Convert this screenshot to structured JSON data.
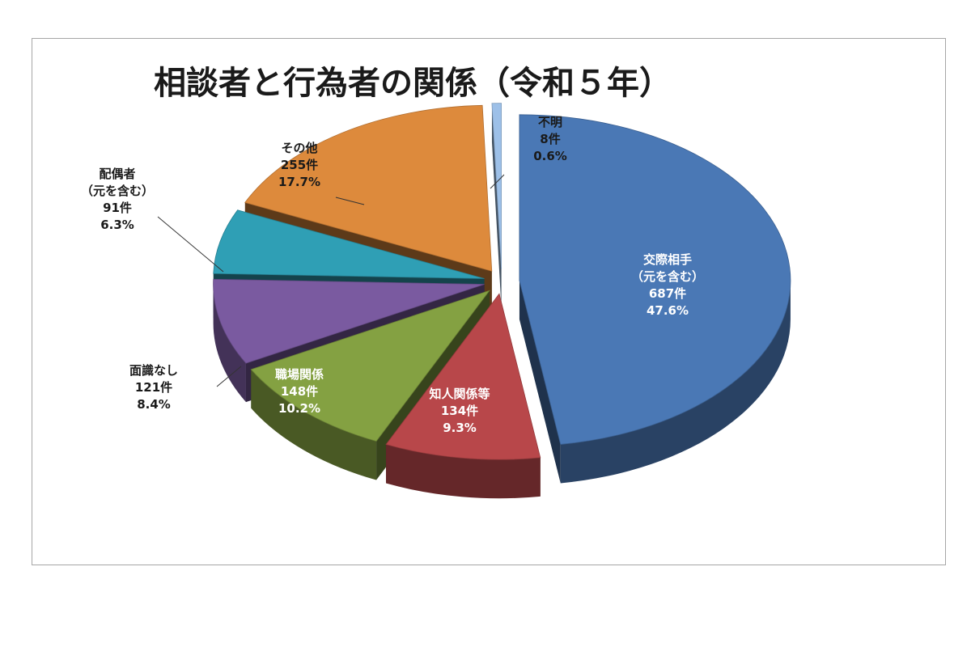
{
  "chart_data": {
    "type": "pie",
    "style": "3d-exploded",
    "title": "相談者と行為者の関係（令和５年）",
    "slices": [
      {
        "name": "交際相手（元を含む）",
        "label_lines": [
          "交際相手",
          "（元を含む）"
        ],
        "count": 687,
        "count_label": "687件",
        "percent": 47.6,
        "percent_label": "47.6%",
        "color": "#4a78b5",
        "label_color": "#ffffff"
      },
      {
        "name": "知人関係等",
        "label_lines": [
          "知人関係等"
        ],
        "count": 134,
        "count_label": "134件",
        "percent": 9.3,
        "percent_label": "9.3%",
        "color": "#b8474a",
        "label_color": "#ffffff"
      },
      {
        "name": "職場関係",
        "label_lines": [
          "職場関係"
        ],
        "count": 148,
        "count_label": "148件",
        "percent": 10.2,
        "percent_label": "10.2%",
        "color": "#84a142",
        "label_color": "#ffffff"
      },
      {
        "name": "面識なし",
        "label_lines": [
          "面識なし"
        ],
        "count": 121,
        "count_label": "121件",
        "percent": 8.4,
        "percent_label": "8.4%",
        "color": "#7a5aa0",
        "label_color": "#1a1a1a"
      },
      {
        "name": "配偶者（元を含む）",
        "label_lines": [
          "配偶者",
          "（元を含む）"
        ],
        "count": 91,
        "count_label": "91件",
        "percent": 6.3,
        "percent_label": "6.3%",
        "color": "#2f9fb5",
        "label_color": "#1a1a1a"
      },
      {
        "name": "その他",
        "label_lines": [
          "その他"
        ],
        "count": 255,
        "count_label": "255件",
        "percent": 17.7,
        "percent_label": "17.7%",
        "color": "#dd8a3c",
        "label_color": "#1a1a1a"
      },
      {
        "name": "不明",
        "label_lines": [
          "不明"
        ],
        "count": 8,
        "count_label": "8件",
        "percent": 0.6,
        "percent_label": "0.6%",
        "color": "#9dc0e8",
        "label_color": "#1a1a1a"
      }
    ],
    "legend": "none",
    "label_placement": "data labels on/near slices with leader lines"
  }
}
